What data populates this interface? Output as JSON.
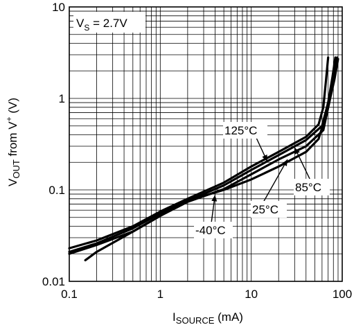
{
  "chart_data": {
    "type": "line",
    "title": "",
    "xlabel": {
      "main": "I",
      "sub": "SOURCE",
      "suffix": " (mA)"
    },
    "ylabel": {
      "main": "V",
      "sub": "OUT",
      "suffix": " from V",
      "sup": "+",
      "tail": " (V)"
    },
    "x_scale": "log",
    "y_scale": "log",
    "xlim": [
      0.1,
      100
    ],
    "ylim": [
      0.01,
      10
    ],
    "grid": true,
    "x_ticks": [
      {
        "value": 0.1,
        "label": "0.1"
      },
      {
        "value": 1,
        "label": "1"
      },
      {
        "value": 10,
        "label": "10"
      },
      {
        "value": 100,
        "label": "100"
      }
    ],
    "y_ticks": [
      {
        "value": 0.01,
        "label": "0.01"
      },
      {
        "value": 0.1,
        "label": "0.1"
      },
      {
        "value": 1,
        "label": "1"
      },
      {
        "value": 10,
        "label": "10"
      }
    ],
    "condition": {
      "main": "V",
      "sub": "S",
      "suffix": " = 2.7V"
    },
    "series": [
      {
        "name": "125°C",
        "x": [
          0.1,
          0.2,
          0.5,
          1,
          2,
          5,
          10,
          20,
          40,
          55,
          62,
          66,
          70
        ],
        "y": [
          0.023,
          0.028,
          0.04,
          0.058,
          0.08,
          0.12,
          0.18,
          0.26,
          0.38,
          0.52,
          0.8,
          1.5,
          2.8
        ]
      },
      {
        "name": "85°C",
        "x": [
          0.1,
          0.2,
          0.5,
          1,
          2,
          5,
          10,
          20,
          40,
          60,
          70,
          78,
          84
        ],
        "y": [
          0.021,
          0.026,
          0.038,
          0.055,
          0.076,
          0.112,
          0.165,
          0.24,
          0.35,
          0.5,
          0.9,
          1.7,
          2.8
        ]
      },
      {
        "name": "25°C",
        "x": [
          0.1,
          0.2,
          0.5,
          1,
          2,
          5,
          10,
          20,
          40,
          62,
          72,
          82,
          88
        ],
        "y": [
          0.02,
          0.025,
          0.035,
          0.052,
          0.074,
          0.102,
          0.148,
          0.215,
          0.3,
          0.45,
          0.9,
          1.8,
          2.8
        ]
      },
      {
        "name": "-40°C",
        "x": [
          0.15,
          0.2,
          0.5,
          1,
          2,
          5,
          10,
          20,
          40,
          55,
          70,
          82,
          90
        ],
        "y": [
          0.017,
          0.021,
          0.035,
          0.052,
          0.076,
          0.1,
          0.13,
          0.18,
          0.26,
          0.36,
          0.8,
          1.6,
          2.7
        ]
      }
    ],
    "annotations": [
      {
        "series": "125°C",
        "text": "125°C",
        "target": [
          15,
          0.205
        ]
      },
      {
        "series": "85°C",
        "text": "85°C",
        "target": [
          30,
          0.29
        ]
      },
      {
        "series": "25°C",
        "text": "25°C",
        "target": [
          25,
          0.215
        ]
      },
      {
        "series": "-40°C",
        "text": "-40°C",
        "target": [
          4,
          0.088
        ]
      }
    ]
  }
}
